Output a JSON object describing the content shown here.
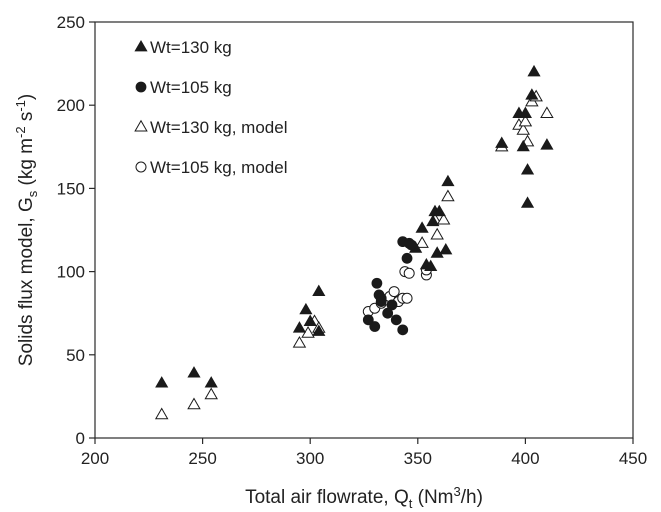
{
  "chart_data": {
    "type": "scatter",
    "xlabel": {
      "main": "Total air flowrate,  Q",
      "sub": "t",
      "tail": " (Nm",
      "sup": "3",
      "end": "/h)"
    },
    "ylabel": {
      "main": "Solids flux model, G",
      "sub": "s",
      "tail": " (kg m",
      "sup1": "-2",
      "mid": " s",
      "sup2": "-1",
      "end": ")"
    },
    "xlim": [
      200,
      450
    ],
    "ylim": [
      0,
      250
    ],
    "xticks": [
      200,
      250,
      300,
      350,
      400,
      450
    ],
    "yticks": [
      0,
      50,
      100,
      150,
      200,
      250
    ],
    "grid": false,
    "legend_position": "top-left",
    "series": [
      {
        "name": "Wt=130 kg",
        "marker": "triangle-filled",
        "color": "#1a1a1a",
        "points": [
          [
            231,
            33
          ],
          [
            246,
            39
          ],
          [
            254,
            33
          ],
          [
            295,
            66
          ],
          [
            298,
            77
          ],
          [
            300,
            70
          ],
          [
            304,
            64
          ],
          [
            304,
            88
          ],
          [
            349,
            114
          ],
          [
            352,
            126
          ],
          [
            354,
            104
          ],
          [
            356,
            103
          ],
          [
            357,
            130
          ],
          [
            358,
            136
          ],
          [
            360,
            136
          ],
          [
            359,
            111
          ],
          [
            363,
            113
          ],
          [
            364,
            154
          ],
          [
            389,
            177
          ],
          [
            397,
            195
          ],
          [
            399,
            175
          ],
          [
            400,
            195
          ],
          [
            401,
            161
          ],
          [
            401,
            141
          ],
          [
            403,
            206
          ],
          [
            404,
            220
          ],
          [
            410,
            176
          ]
        ]
      },
      {
        "name": "Wt=105 kg",
        "marker": "circle-filled",
        "color": "#1a1a1a",
        "points": [
          [
            327,
            71
          ],
          [
            330,
            67
          ],
          [
            331,
            93
          ],
          [
            332,
            86
          ],
          [
            333,
            84
          ],
          [
            333,
            82
          ],
          [
            336,
            75
          ],
          [
            338,
            80
          ],
          [
            340,
            71
          ],
          [
            343,
            65
          ],
          [
            343,
            118
          ],
          [
            345,
            108
          ],
          [
            346,
            117
          ],
          [
            347,
            116
          ]
        ]
      },
      {
        "name": "Wt=130 kg, model",
        "marker": "triangle-open",
        "color": "#1a1a1a",
        "points": [
          [
            231,
            14
          ],
          [
            246,
            20
          ],
          [
            254,
            26
          ],
          [
            295,
            57
          ],
          [
            299,
            63
          ],
          [
            302,
            70
          ],
          [
            304,
            66
          ],
          [
            352,
            117
          ],
          [
            358,
            131
          ],
          [
            359,
            122
          ],
          [
            362,
            131
          ],
          [
            364,
            145
          ],
          [
            389,
            175
          ],
          [
            397,
            188
          ],
          [
            399,
            185
          ],
          [
            400,
            190
          ],
          [
            401,
            178
          ],
          [
            403,
            202
          ],
          [
            405,
            205
          ],
          [
            410,
            195
          ]
        ]
      },
      {
        "name": "Wt=105 kg, model",
        "marker": "circle-open",
        "color": "#1a1a1a",
        "points": [
          [
            327,
            76
          ],
          [
            330,
            78
          ],
          [
            333,
            81
          ],
          [
            335,
            83
          ],
          [
            337,
            85
          ],
          [
            339,
            88
          ],
          [
            341,
            82
          ],
          [
            343,
            84
          ],
          [
            344,
            100
          ],
          [
            345,
            84
          ],
          [
            346,
            99
          ],
          [
            354,
            98
          ],
          [
            354,
            101
          ]
        ]
      }
    ]
  }
}
